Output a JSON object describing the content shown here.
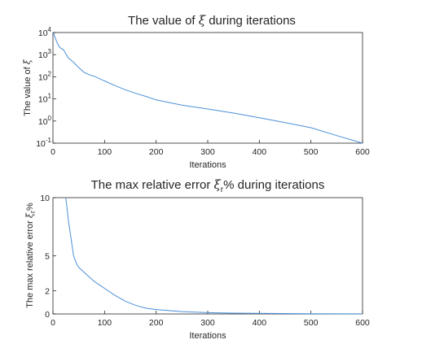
{
  "chart_data": [
    {
      "type": "line",
      "title_main": "The value of ",
      "title_symbol": "ξ",
      "title_rest": " during iterations",
      "xlabel": "Iterations",
      "ylabel_main": "The value of ",
      "ylabel_symbol": "ξ",
      "xlim": [
        0,
        600
      ],
      "ylim": [
        0.1,
        10000
      ],
      "yscale": "log",
      "grid": false,
      "xticks": [
        0,
        100,
        200,
        300,
        400,
        500,
        600
      ],
      "yticks": [
        0.1,
        1,
        10,
        100,
        1000,
        10000
      ],
      "yticklabels": [
        {
          "base": "10",
          "exp": "-1"
        },
        {
          "base": "10",
          "exp": "0"
        },
        {
          "base": "10",
          "exp": "1"
        },
        {
          "base": "10",
          "exp": "2"
        },
        {
          "base": "10",
          "exp": "3"
        },
        {
          "base": "10",
          "exp": "4"
        }
      ],
      "color": "#4a90d9",
      "series": [
        {
          "x": [
            1,
            4,
            8,
            12,
            16,
            20,
            25,
            30,
            40,
            50,
            60,
            70,
            80,
            100,
            120,
            140,
            160,
            180,
            200,
            250,
            300,
            350,
            400,
            450,
            500,
            550,
            600
          ],
          "y": [
            10000,
            6000,
            3500,
            2300,
            1900,
            1700,
            1100,
            700,
            450,
            260,
            160,
            125,
            105,
            65,
            40,
            26,
            18,
            13,
            9,
            5.2,
            3.5,
            2.3,
            1.4,
            0.85,
            0.5,
            0.22,
            0.1
          ]
        }
      ]
    },
    {
      "type": "line",
      "title_main": "The max relative error ",
      "title_symbol": "ξ",
      "title_sub": "r",
      "title_rest": "% during iterations",
      "xlabel": "Iterations",
      "ylabel_main": "The max relative error ",
      "ylabel_symbol": "ξ",
      "ylabel_sub": "r",
      "ylabel_rest": "%",
      "xlim": [
        0,
        600
      ],
      "ylim": [
        0,
        10
      ],
      "yscale": "linear",
      "grid": false,
      "xticks": [
        0,
        100,
        200,
        300,
        400,
        500,
        600
      ],
      "yticks": [
        0,
        2,
        5,
        10
      ],
      "color": "#4a90d9",
      "series": [
        {
          "x": [
            25,
            30,
            35,
            40,
            45,
            50,
            60,
            70,
            80,
            90,
            100,
            120,
            140,
            160,
            180,
            200,
            250,
            300,
            350,
            400,
            500,
            600
          ],
          "y": [
            10,
            8,
            6.5,
            5.0,
            4.4,
            4.0,
            3.6,
            3.2,
            2.8,
            2.5,
            2.2,
            1.6,
            1.1,
            0.75,
            0.5,
            0.38,
            0.2,
            0.11,
            0.07,
            0.05,
            0.02,
            0.01
          ]
        }
      ]
    }
  ]
}
